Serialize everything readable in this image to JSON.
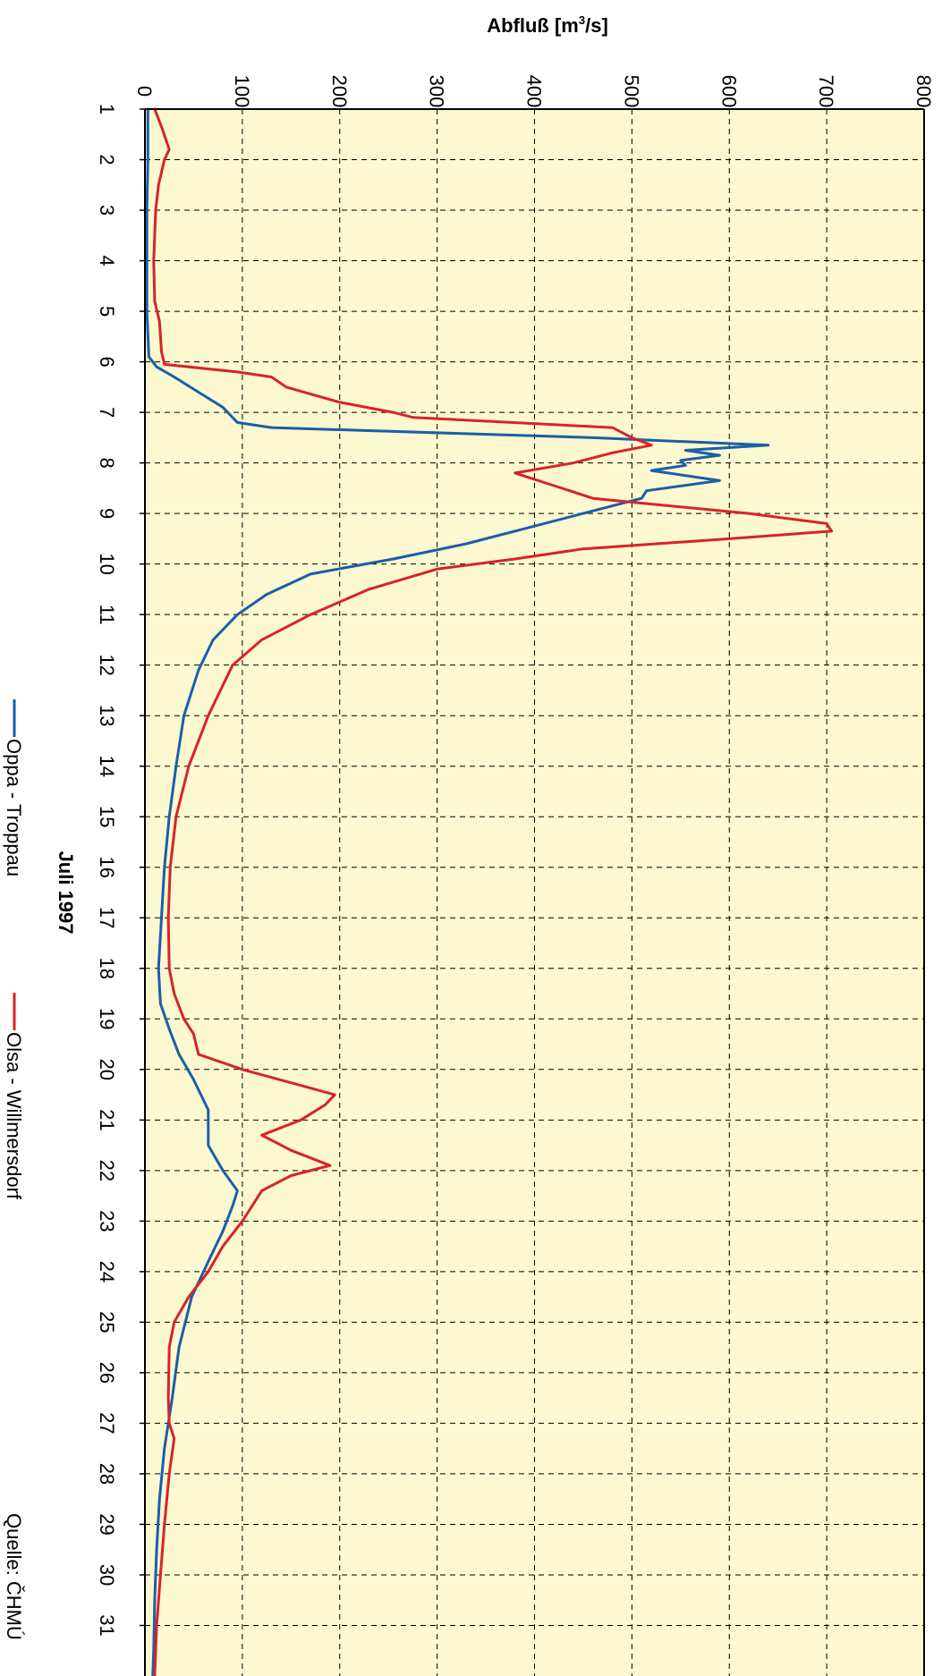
{
  "chart_data": {
    "type": "line",
    "orientation": "rotated-90",
    "ylabel": "Abfluß [m³/s]",
    "ylabel_main": "Abfluß [m",
    "ylabel_sup": "3",
    "ylabel_tail": "/s]",
    "xlabel": "Juli 1997",
    "ylim": [
      0,
      800
    ],
    "xlim": [
      1,
      32
    ],
    "y_ticks": [
      0,
      100,
      200,
      300,
      400,
      500,
      600,
      700,
      800
    ],
    "x_ticks": [
      1,
      2,
      3,
      4,
      5,
      6,
      7,
      8,
      9,
      10,
      11,
      12,
      13,
      14,
      15,
      16,
      17,
      18,
      19,
      20,
      21,
      22,
      23,
      24,
      25,
      26,
      27,
      28,
      29,
      30,
      31
    ],
    "grid": true,
    "background_color": "#fcf8d0",
    "legend_placement": "bottom",
    "source": "Quelle: ČHMÚ",
    "series": [
      {
        "name": "Oppa - Troppau",
        "color": "#1a5fa8",
        "x": [
          1,
          2,
          3,
          4,
          5,
          5.9,
          6.1,
          6.3,
          6.6,
          6.9,
          7.2,
          7.3,
          7.5,
          7.65,
          7.75,
          7.85,
          7.95,
          8.05,
          8.15,
          8.35,
          8.55,
          8.7,
          9.0,
          9.3,
          9.6,
          9.9,
          10.2,
          10.6,
          11.0,
          11.5,
          12.1,
          13.0,
          14.0,
          15.0,
          16.0,
          17.0,
          18.0,
          18.7,
          19.2,
          19.7,
          20.2,
          20.8,
          21.5,
          22.0,
          22.4,
          22.7,
          23.2,
          23.8,
          24.5,
          25.5,
          26.5,
          27.5,
          28.5,
          29.5,
          30.5,
          31.5,
          32.0
        ],
        "y": [
          3,
          3,
          2,
          2,
          2,
          4,
          12,
          30,
          55,
          80,
          95,
          130,
          460,
          640,
          555,
          590,
          550,
          555,
          520,
          590,
          515,
          510,
          450,
          390,
          330,
          255,
          170,
          125,
          95,
          70,
          55,
          40,
          32,
          25,
          20,
          17,
          14,
          16,
          25,
          35,
          50,
          65,
          65,
          80,
          95,
          90,
          80,
          65,
          48,
          35,
          28,
          20,
          15,
          12,
          10,
          9,
          8
        ]
      },
      {
        "name": "Olsa - Willmersdorf",
        "color": "#d8232a",
        "x": [
          1,
          1.4,
          1.8,
          2.0,
          2.5,
          3.0,
          4.0,
          4.8,
          5.2,
          5.8,
          6.05,
          6.2,
          6.3,
          6.5,
          6.8,
          7.0,
          7.1,
          7.3,
          7.5,
          7.65,
          7.8,
          8.0,
          8.2,
          8.45,
          8.7,
          8.85,
          9.0,
          9.2,
          9.35,
          9.5,
          9.7,
          9.9,
          10.1,
          10.5,
          11.0,
          11.5,
          12.0,
          13.0,
          14.0,
          15.0,
          16.0,
          17.0,
          18.0,
          18.5,
          19.0,
          19.3,
          19.7,
          20.0,
          20.5,
          20.7,
          21.0,
          21.3,
          21.6,
          21.9,
          22.1,
          22.4,
          22.7,
          23.0,
          23.5,
          24.0,
          24.5,
          25.0,
          25.5,
          26.5,
          27.0,
          27.3,
          28.0,
          29.0,
          30.0,
          31.0,
          32.0
        ],
        "y": [
          10,
          18,
          25,
          20,
          14,
          11,
          9,
          10,
          15,
          17,
          20,
          95,
          130,
          145,
          200,
          255,
          275,
          480,
          500,
          520,
          480,
          440,
          380,
          420,
          460,
          540,
          620,
          700,
          705,
          600,
          450,
          380,
          300,
          230,
          170,
          120,
          90,
          65,
          45,
          32,
          26,
          24,
          25,
          30,
          40,
          50,
          55,
          100,
          195,
          185,
          160,
          120,
          150,
          190,
          150,
          120,
          110,
          100,
          80,
          65,
          45,
          30,
          25,
          24,
          25,
          30,
          25,
          20,
          16,
          12,
          10
        ]
      }
    ]
  }
}
